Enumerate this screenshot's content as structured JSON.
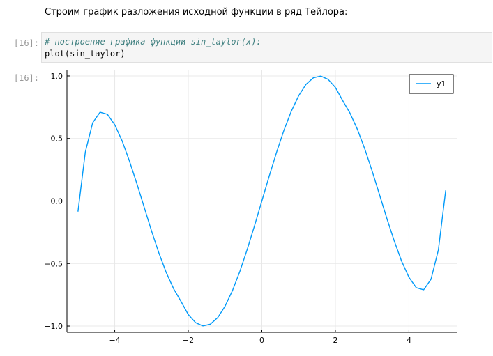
{
  "markdown": {
    "text": "Строим график разложения исходной функции в ряд Тейлора:"
  },
  "code_cell": {
    "input_prompt": "[16]:",
    "comment_line": "# построение графика функции sin_taylor(x):",
    "code_line": "plot(sin_taylor)"
  },
  "output_cell": {
    "output_prompt": "[16]:"
  },
  "colors": {
    "series": "#009AF9",
    "grid": "#e8e8e8",
    "code_bg": "#f5f5f5",
    "comment": "#408080"
  },
  "chart_data": {
    "type": "line",
    "title": "",
    "xlabel": "",
    "ylabel": "",
    "xlim": [
      -5.3,
      5.3
    ],
    "ylim": [
      -1.05,
      1.05
    ],
    "x_ticks": [
      -4,
      -2,
      0,
      2,
      4
    ],
    "x_tick_labels": [
      "−4",
      "−2",
      "0",
      "2",
      "4"
    ],
    "y_ticks": [
      -1.0,
      -0.5,
      0.0,
      0.5,
      1.0
    ],
    "y_tick_labels": [
      "−1.0",
      "−0.5",
      "0.0",
      "0.5",
      "1.0"
    ],
    "grid": true,
    "legend_position": "top-right",
    "series": [
      {
        "name": "y1",
        "color": "#009AF9",
        "x": [
          -5.0,
          -4.8,
          -4.6,
          -4.4,
          -4.2,
          -4.0,
          -3.8,
          -3.6,
          -3.4,
          -3.2,
          -3.0,
          -2.8,
          -2.6,
          -2.4,
          -2.2,
          -2.0,
          -1.8,
          -1.6,
          -1.4,
          -1.2,
          -1.0,
          -0.8,
          -0.6,
          -0.4,
          -0.2,
          0.0,
          0.2,
          0.4,
          0.6,
          0.8,
          1.0,
          1.2,
          1.4,
          1.6,
          1.8,
          2.0,
          2.2,
          2.4,
          2.6,
          2.8,
          3.0,
          3.2,
          3.4,
          3.6,
          3.8,
          4.0,
          4.2,
          4.4,
          4.6,
          4.8,
          5.0
        ],
        "y": [
          -0.085,
          0.392,
          0.626,
          0.71,
          0.693,
          0.61,
          0.481,
          0.319,
          0.14,
          -0.05,
          -0.239,
          -0.416,
          -0.572,
          -0.701,
          -0.802,
          -0.908,
          -0.973,
          -0.999,
          -0.985,
          -0.932,
          -0.841,
          -0.717,
          -0.565,
          -0.389,
          -0.199,
          0.0,
          0.199,
          0.389,
          0.565,
          0.717,
          0.841,
          0.932,
          0.985,
          0.999,
          0.973,
          0.908,
          0.802,
          0.701,
          0.572,
          0.416,
          0.239,
          0.05,
          -0.14,
          -0.319,
          -0.481,
          -0.61,
          -0.693,
          -0.71,
          -0.626,
          -0.392,
          0.085
        ]
      }
    ]
  }
}
